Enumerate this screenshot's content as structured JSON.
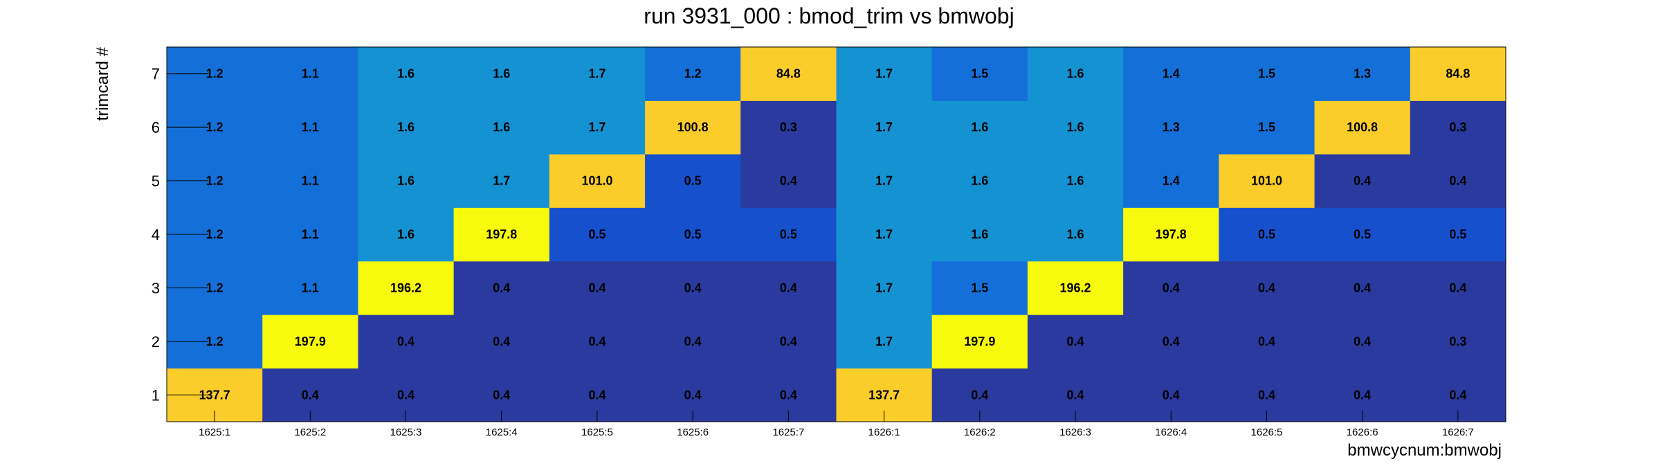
{
  "chart_data": {
    "type": "heatmap",
    "title": "run 3931_000 : bmod_trim vs bmwobj",
    "xlabel": "bmwcycnum:bmwobj",
    "ylabel": "trimcard #",
    "x_categories": [
      "1625:1",
      "1625:2",
      "1625:3",
      "1625:4",
      "1625:5",
      "1625:6",
      "1625:7",
      "1626:1",
      "1626:2",
      "1626:3",
      "1626:4",
      "1626:5",
      "1626:6",
      "1626:7"
    ],
    "y_categories": [
      "1",
      "2",
      "3",
      "4",
      "5",
      "6",
      "7"
    ],
    "values": [
      [
        137.7,
        0.4,
        0.4,
        0.4,
        0.4,
        0.4,
        0.4,
        137.7,
        0.4,
        0.4,
        0.4,
        0.4,
        0.4,
        0.4
      ],
      [
        1.2,
        197.9,
        0.4,
        0.4,
        0.4,
        0.4,
        0.4,
        1.7,
        197.9,
        0.4,
        0.4,
        0.4,
        0.4,
        0.3
      ],
      [
        1.2,
        1.1,
        196.2,
        0.4,
        0.4,
        0.4,
        0.4,
        1.7,
        1.5,
        196.2,
        0.4,
        0.4,
        0.4,
        0.4
      ],
      [
        1.2,
        1.1,
        1.6,
        197.8,
        0.5,
        0.5,
        0.5,
        1.7,
        1.6,
        1.6,
        197.8,
        0.5,
        0.5,
        0.5
      ],
      [
        1.2,
        1.1,
        1.6,
        1.7,
        101.0,
        0.5,
        0.4,
        1.7,
        1.6,
        1.6,
        1.4,
        101.0,
        0.4,
        0.4
      ],
      [
        1.2,
        1.1,
        1.6,
        1.6,
        1.7,
        100.8,
        0.3,
        1.7,
        1.6,
        1.6,
        1.3,
        1.5,
        100.8,
        0.3
      ],
      [
        1.2,
        1.1,
        1.6,
        1.6,
        1.7,
        1.2,
        84.8,
        1.7,
        1.5,
        1.6,
        1.4,
        1.5,
        1.3,
        84.8
      ]
    ],
    "labels": [
      [
        "137.7",
        "0.4",
        "0.4",
        "0.4",
        "0.4",
        "0.4",
        "0.4",
        "137.7",
        "0.4",
        "0.4",
        "0.4",
        "0.4",
        "0.4",
        "0.4"
      ],
      [
        "1.2",
        "197.9",
        "0.4",
        "0.4",
        "0.4",
        "0.4",
        "0.4",
        "1.7",
        "197.9",
        "0.4",
        "0.4",
        "0.4",
        "0.4",
        "0.3"
      ],
      [
        "1.2",
        "1.1",
        "196.2",
        "0.4",
        "0.4",
        "0.4",
        "0.4",
        "1.7",
        "1.5",
        "196.2",
        "0.4",
        "0.4",
        "0.4",
        "0.4"
      ],
      [
        "1.2",
        "1.1",
        "1.6",
        "197.8",
        "0.5",
        "0.5",
        "0.5",
        "1.7",
        "1.6",
        "1.6",
        "197.8",
        "0.5",
        "0.5",
        "0.5"
      ],
      [
        "1.2",
        "1.1",
        "1.6",
        "1.7",
        "101.0",
        "0.5",
        "0.4",
        "1.7",
        "1.6",
        "1.6",
        "1.4",
        "101.0",
        "0.4",
        "0.4"
      ],
      [
        "1.2",
        "1.1",
        "1.6",
        "1.6",
        "1.7",
        "100.8",
        "0.3",
        "1.7",
        "1.6",
        "1.6",
        "1.3",
        "1.5",
        "100.8",
        "0.3"
      ],
      [
        "1.2",
        "1.1",
        "1.6",
        "1.6",
        "1.7",
        "1.2",
        "84.8",
        "1.7",
        "1.5",
        "1.6",
        "1.4",
        "1.5",
        "1.3",
        "84.8"
      ]
    ],
    "colormap": {
      "dark_blue": "#2a3a9e",
      "mid_blue": "#1650cc",
      "blue": "#1470d8",
      "light_blue": "#1592d2",
      "orange_yellow": "#fbcd2a",
      "yellow": "#f8fa0d"
    },
    "grid": false,
    "legend": "none"
  }
}
